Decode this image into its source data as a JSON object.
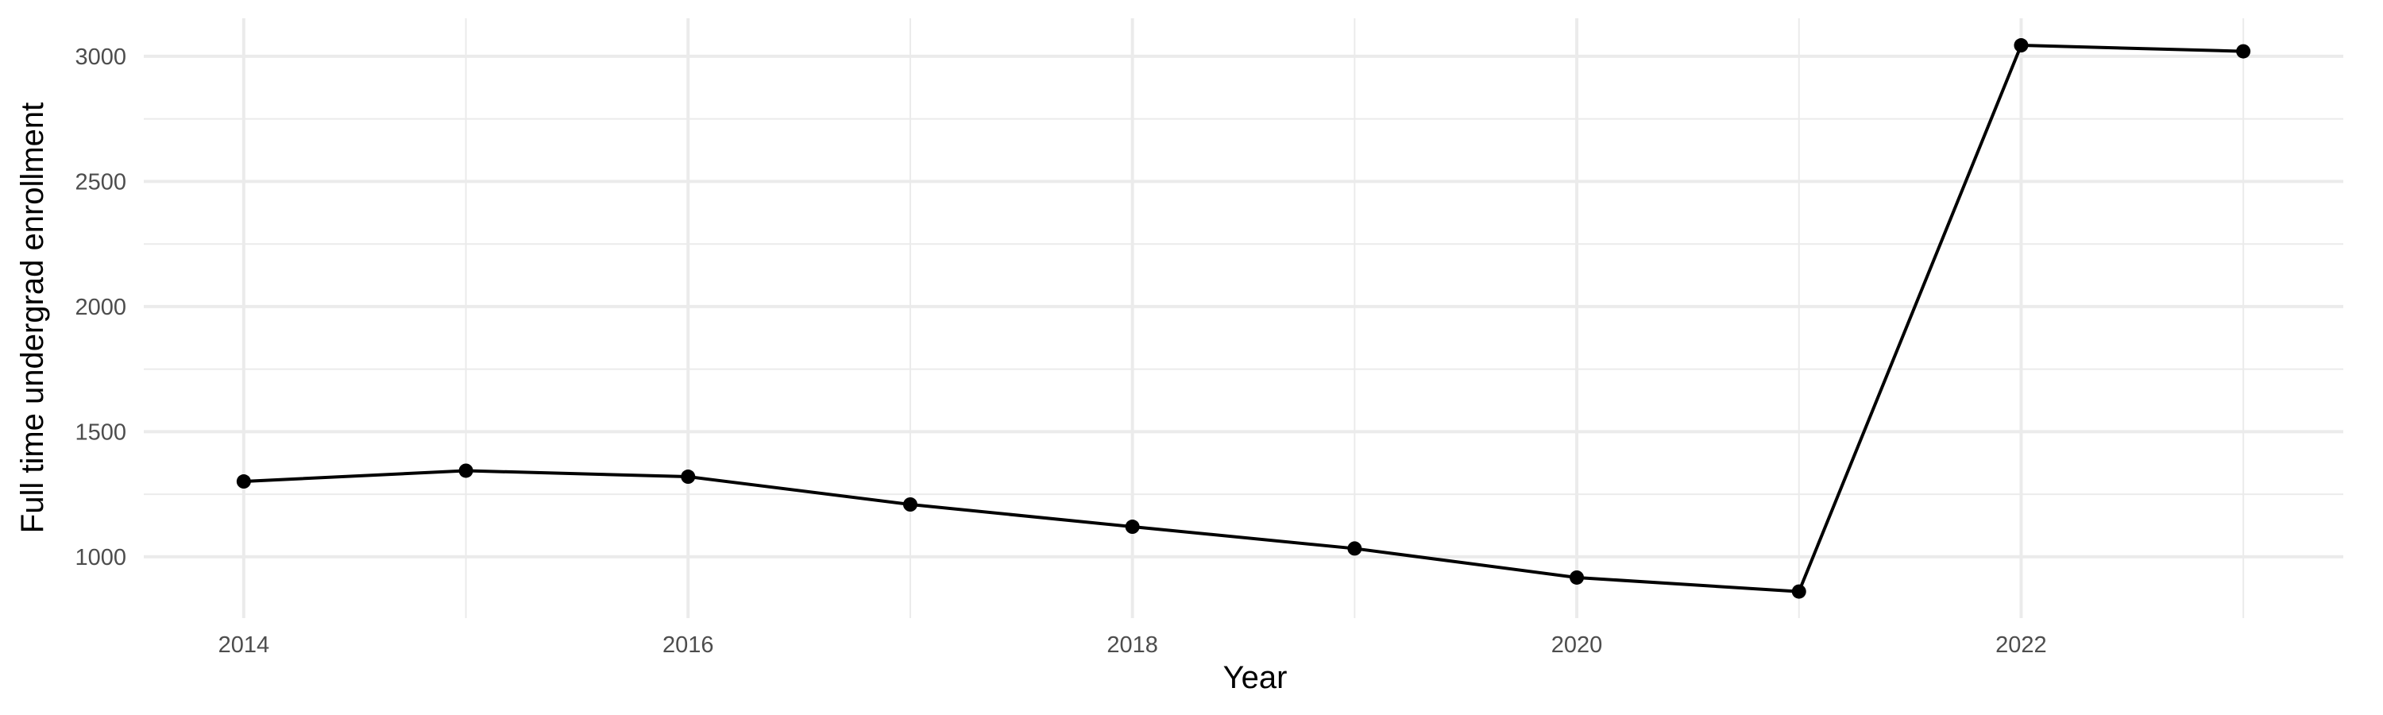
{
  "chart_data": {
    "type": "line",
    "title": "",
    "xlabel": "Year",
    "ylabel": "Full time undergrad enrollment",
    "x": [
      2014,
      2015,
      2016,
      2017,
      2018,
      2019,
      2020,
      2021,
      2022,
      2023
    ],
    "series": [
      {
        "values": [
          1301,
          1344,
          1320,
          1209,
          1120,
          1033,
          917,
          861,
          3044,
          3020
        ]
      }
    ],
    "xlim": [
      2013.55,
      2023.45
    ],
    "ylim": [
      755,
      3152
    ],
    "xticks": [
      2014,
      2016,
      2018,
      2020,
      2022
    ],
    "yticks": [
      1000,
      1500,
      2000,
      2500,
      3000
    ],
    "xtick_labels": [
      "2014",
      "2016",
      "2018",
      "2020",
      "2022"
    ],
    "ytick_labels": [
      "1000",
      "1500",
      "2000",
      "2500",
      "3000"
    ],
    "grid": true,
    "line_color": "#000000",
    "grid_color": "#ebebeb"
  }
}
